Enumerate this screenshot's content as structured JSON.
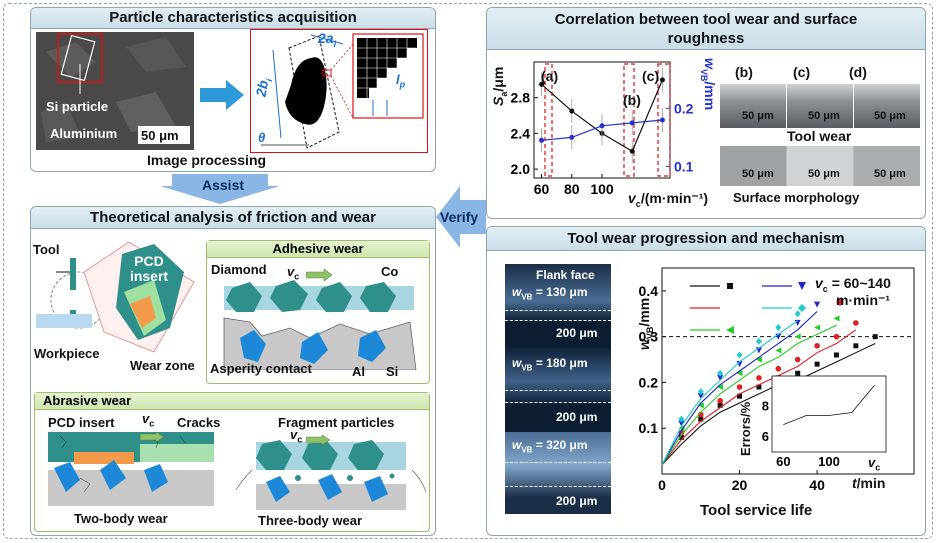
{
  "panels": {
    "particle": {
      "title": "Particle characteristics acquisition",
      "si_label": "Si particle",
      "al_label": "Aluminium",
      "scale": "50 μm",
      "caption": "Image processing",
      "dim_2a": "2a",
      "dim_2a_sub": "i",
      "dim_2b": "2b",
      "dim_2b_sub": "i",
      "theta": "θ",
      "lp": "l",
      "lp_sub": "p"
    },
    "theory": {
      "title": "Theoretical analysis of friction and wear",
      "tool": "Tool",
      "workpiece": "Workpiece",
      "pcd_insert": "PCD insert",
      "wear_zone": "Wear zone",
      "adhesive": {
        "title": "Adhesive wear",
        "diamond": "Diamond",
        "vc": "v",
        "vc_sub": "c",
        "co": "Co",
        "asperity": "Asperity contact",
        "al": "Al",
        "si": "Si"
      },
      "abrasive": {
        "title": "Abrasive wear",
        "pcd_insert": "PCD insert",
        "vc": "v",
        "vc_sub": "c",
        "cracks": "Cracks",
        "two_body": "Two-body wear",
        "fragments": "Fragment particles",
        "three_body": "Three-body wear"
      }
    },
    "correlation": {
      "title": "Correlation between tool wear and surface roughness",
      "ylabel_left": "S",
      "ylabel_left_sub": "a",
      "ylabel_left_unit": "/μm",
      "ylabel_right": "w",
      "ylabel_right_sub": "VB",
      "ylabel_right_unit": "/mm",
      "xlabel": "v",
      "xlabel_sub": "c",
      "xlabel_unit": "/(m·min⁻¹)",
      "labels": [
        "(a)",
        "(b)",
        "(c)"
      ],
      "micro_labels": [
        "(b)",
        "(c)",
        "(d)"
      ],
      "scale": "50 μm",
      "tool_wear": "Tool wear",
      "surface_morphology": "Surface morphology"
    },
    "progression": {
      "title": "Tool wear progression and mechanism",
      "flank_face": "Flank face",
      "wvb_1": "= 130 μm",
      "wvb_2": "= 180 μm",
      "wvb_3": "= 320 μm",
      "wvb_prefix": "w",
      "wvb_sub": "VB",
      "scale": "200 μm",
      "ylabel": "w",
      "ylabel_sub": "VB",
      "ylabel_unit": "/mm",
      "xlabel": "t",
      "xlabel_unit": "/min",
      "legend_vc": "v",
      "legend_vc_sub": "c",
      "legend_range": " = 60~140",
      "legend_unit": "m·min⁻¹",
      "inset_ylabel": "Errors/%",
      "inset_xlabel": "v",
      "inset_xlabel_sub": "c",
      "caption": "Tool service life"
    }
  },
  "arrows": {
    "assist": "Assist",
    "verify": "Verify"
  },
  "chart_data": [
    {
      "type": "line",
      "title": "",
      "xlabel": "v_c/(m·min⁻¹)",
      "ylabel": "S_a/μm",
      "y2label": "w_VB/mm",
      "x": [
        60,
        80,
        100,
        120,
        140
      ],
      "series": [
        {
          "axis": "left",
          "color": "#111111",
          "values": [
            2.95,
            2.65,
            2.4,
            2.2,
            3.0
          ]
        },
        {
          "axis": "right",
          "color": "#2233cc",
          "values": [
            0.145,
            0.15,
            0.17,
            0.175,
            0.18
          ]
        }
      ],
      "ylim": [
        1.9,
        3.2
      ],
      "y2lim": [
        0.08,
        0.28
      ],
      "xticks": [
        60,
        80,
        100
      ],
      "yticks": [
        2.0,
        2.4,
        2.8
      ],
      "y2ticks": [
        0.1,
        0.2
      ]
    },
    {
      "type": "scatter",
      "title": "",
      "xlabel": "t/min",
      "ylabel": "w_VB/mm",
      "xlim": [
        0,
        65
      ],
      "ylim": [
        0,
        0.45
      ],
      "xticks": [
        0,
        20,
        40
      ],
      "yticks": [
        0.1,
        0.2,
        0.3,
        0.4
      ],
      "threshold": 0.3,
      "series": [
        {
          "color": "#111111",
          "marker": "square",
          "x": [
            5,
            10,
            15,
            20,
            25,
            30,
            35,
            40,
            45,
            50,
            55
          ],
          "y": [
            0.08,
            0.12,
            0.15,
            0.17,
            0.19,
            0.21,
            0.22,
            0.24,
            0.26,
            0.28,
            0.3
          ]
        },
        {
          "color": "#e02020",
          "marker": "circle",
          "x": [
            5,
            10,
            15,
            20,
            25,
            30,
            35,
            40,
            45,
            50
          ],
          "y": [
            0.09,
            0.13,
            0.16,
            0.19,
            0.21,
            0.23,
            0.25,
            0.28,
            0.3,
            0.33
          ]
        },
        {
          "color": "#22cc22",
          "marker": "triangle-left",
          "x": [
            5,
            10,
            15,
            20,
            25,
            30,
            35,
            40,
            45
          ],
          "y": [
            0.1,
            0.15,
            0.19,
            0.22,
            0.25,
            0.27,
            0.3,
            0.32,
            0.34
          ]
        },
        {
          "color": "#2222cc",
          "marker": "triangle-down",
          "x": [
            5,
            10,
            15,
            20,
            25,
            30,
            35,
            40
          ],
          "y": [
            0.11,
            0.17,
            0.21,
            0.24,
            0.27,
            0.3,
            0.33,
            0.37
          ]
        },
        {
          "color": "#22cccc",
          "marker": "diamond",
          "x": [
            5,
            10,
            15,
            20,
            25,
            30,
            35
          ],
          "y": [
            0.12,
            0.18,
            0.22,
            0.26,
            0.29,
            0.32,
            0.35
          ]
        }
      ]
    },
    {
      "type": "line",
      "title": "",
      "xlabel": "v_c",
      "ylabel": "Errors/%",
      "x": [
        60,
        80,
        100,
        120,
        140
      ],
      "values": [
        6.8,
        7.4,
        7.4,
        7.6,
        9.4
      ],
      "xticks": [
        60,
        100
      ],
      "yticks": [
        6,
        8
      ]
    }
  ]
}
